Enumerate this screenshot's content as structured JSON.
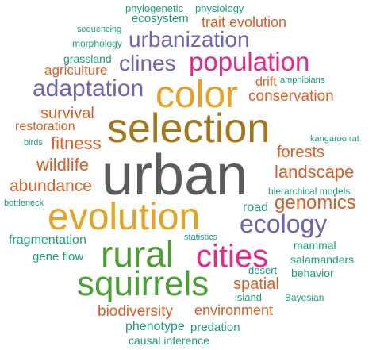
{
  "colors": {
    "gray": "#5b5b5b",
    "brown": "#a6761d",
    "gold": "#e6a222",
    "magenta": "#e7298a",
    "purple": "#6a66b5",
    "green": "#4b9f32",
    "orange": "#d95f26",
    "teal": "#1b9e77"
  },
  "words": [
    {
      "text": "phylogenetic",
      "color": "teal"
    },
    {
      "text": "physiology",
      "color": "teal"
    },
    {
      "text": "ecosystem",
      "color": "teal"
    },
    {
      "text": "trait evolution",
      "color": "orange"
    },
    {
      "text": "sequencing",
      "color": "teal"
    },
    {
      "text": "morphology",
      "color": "teal"
    },
    {
      "text": "urbanization",
      "color": "purple"
    },
    {
      "text": "grassland",
      "color": "teal"
    },
    {
      "text": "clines",
      "color": "purple"
    },
    {
      "text": "population",
      "color": "magenta"
    },
    {
      "text": "agriculture",
      "color": "orange"
    },
    {
      "text": "amphibians",
      "color": "teal"
    },
    {
      "text": "drift",
      "color": "orange"
    },
    {
      "text": "adaptation",
      "color": "purple"
    },
    {
      "text": "conservation",
      "color": "orange"
    },
    {
      "text": "color",
      "color": "gold"
    },
    {
      "text": "survival",
      "color": "orange"
    },
    {
      "text": "restoration",
      "color": "orange"
    },
    {
      "text": "selection",
      "color": "brown"
    },
    {
      "text": "birds",
      "color": "teal"
    },
    {
      "text": "fitness",
      "color": "orange"
    },
    {
      "text": "kangaroo rat",
      "color": "teal"
    },
    {
      "text": "forests",
      "color": "orange"
    },
    {
      "text": "wildlife",
      "color": "orange"
    },
    {
      "text": "urban",
      "color": "gray"
    },
    {
      "text": "landscape",
      "color": "orange"
    },
    {
      "text": "abundance",
      "color": "orange"
    },
    {
      "text": "hierarchical models",
      "color": "teal"
    },
    {
      "text": "genomics",
      "color": "orange"
    },
    {
      "text": "bottleneck",
      "color": "teal"
    },
    {
      "text": "evolution",
      "color": "gold"
    },
    {
      "text": "road",
      "color": "teal"
    },
    {
      "text": "ecology",
      "color": "purple"
    },
    {
      "text": "fragmentation",
      "color": "teal"
    },
    {
      "text": "statistics",
      "color": "teal"
    },
    {
      "text": "mammal",
      "color": "teal"
    },
    {
      "text": "rural",
      "color": "green"
    },
    {
      "text": "cities",
      "color": "magenta"
    },
    {
      "text": "gene flow",
      "color": "teal"
    },
    {
      "text": "salamanders",
      "color": "teal"
    },
    {
      "text": "desert",
      "color": "teal"
    },
    {
      "text": "behavior",
      "color": "teal"
    },
    {
      "text": "squirrels",
      "color": "green"
    },
    {
      "text": "spatial",
      "color": "orange"
    },
    {
      "text": "island",
      "color": "teal"
    },
    {
      "text": "Bayesian",
      "color": "teal"
    },
    {
      "text": "biodiversity",
      "color": "orange"
    },
    {
      "text": "environment",
      "color": "orange"
    },
    {
      "text": "phenotype",
      "color": "teal"
    },
    {
      "text": "predation",
      "color": "teal"
    },
    {
      "text": "causal inference",
      "color": "teal"
    }
  ]
}
